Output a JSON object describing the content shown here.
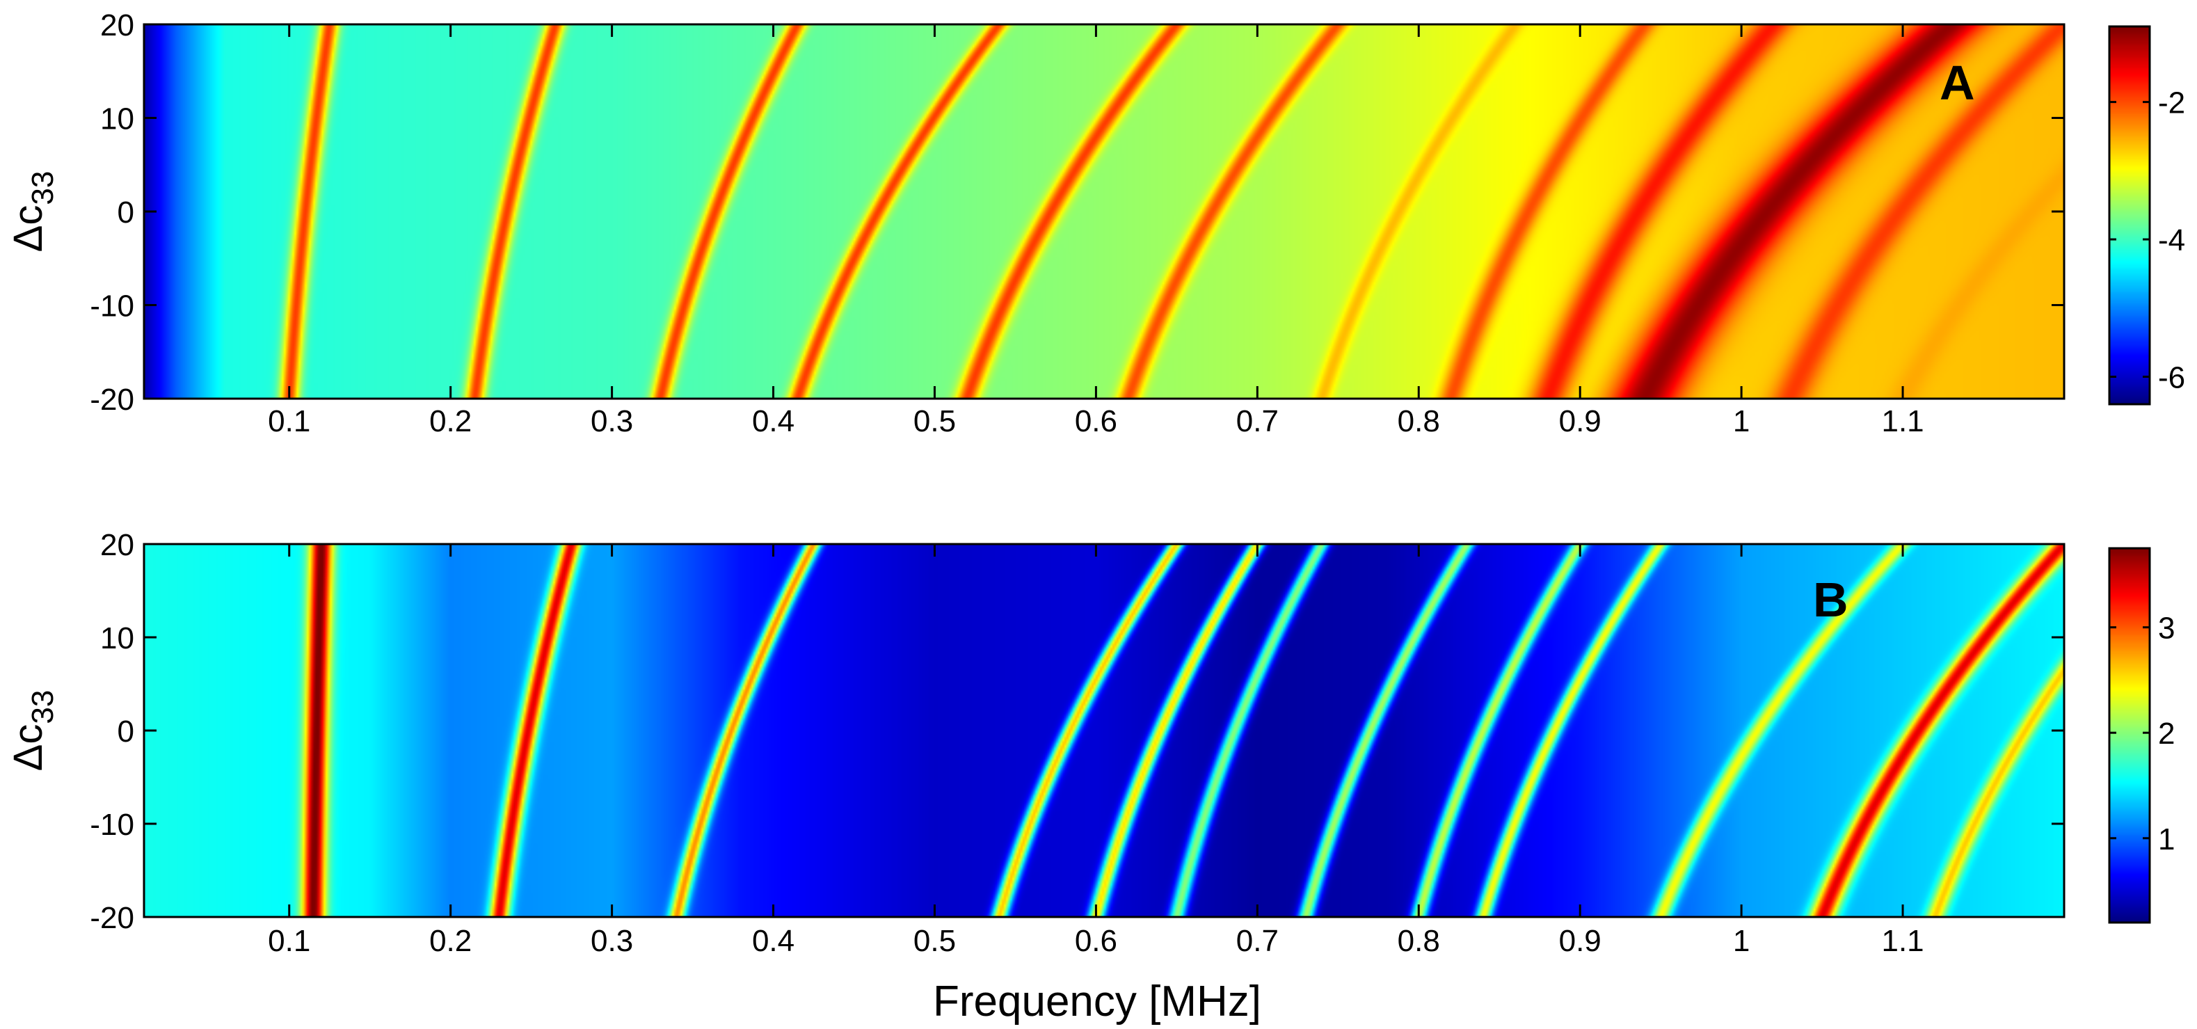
{
  "figure": {
    "xlabel": "Frequency [MHz]"
  },
  "colors": {
    "colormap": "jet",
    "frame": "#000000"
  },
  "chart_data": [
    {
      "type": "heatmap",
      "panel": "A",
      "ylabel_main": "Δc",
      "ylabel_sub": "33",
      "xlim": [
        0.01,
        1.2
      ],
      "ylim": [
        -20,
        20
      ],
      "xticks": [
        0.1,
        0.2,
        0.3,
        0.4,
        0.5,
        0.6,
        0.7,
        0.8,
        0.9,
        1.0,
        1.1
      ],
      "xtick_labels": [
        "0.1",
        "0.2",
        "0.3",
        "0.4",
        "0.5",
        "0.6",
        "0.7",
        "0.8",
        "0.9",
        "1",
        "1.1"
      ],
      "yticks": [
        20,
        10,
        0,
        -10,
        -20
      ],
      "ytick_labels": [
        "20",
        "10",
        "0",
        "-10",
        "-20"
      ],
      "clim": [
        -6.4,
        -0.9
      ],
      "cticks": [
        -2,
        -4,
        -6
      ],
      "ctick_labels": [
        "-2",
        "-4",
        "-6"
      ],
      "baseline": [
        {
          "x": 0.01,
          "v": -6.2
        },
        {
          "x": 0.03,
          "v": -5.2
        },
        {
          "x": 0.06,
          "v": -4.2
        },
        {
          "x": 0.15,
          "v": -4.1
        },
        {
          "x": 0.3,
          "v": -4.0
        },
        {
          "x": 0.5,
          "v": -3.7
        },
        {
          "x": 0.7,
          "v": -3.4
        },
        {
          "x": 0.85,
          "v": -3.0
        },
        {
          "x": 1.0,
          "v": -2.7
        },
        {
          "x": 1.2,
          "v": -2.6
        }
      ],
      "ridges": [
        {
          "f_bottom": 0.1,
          "f_top": 0.125,
          "peak": -1.9,
          "width": 0.006
        },
        {
          "f_bottom": 0.215,
          "f_top": 0.265,
          "peak": -1.9,
          "width": 0.006
        },
        {
          "f_bottom": 0.33,
          "f_top": 0.415,
          "peak": -1.9,
          "width": 0.006
        },
        {
          "f_bottom": 0.415,
          "f_top": 0.54,
          "peak": -1.9,
          "width": 0.006
        },
        {
          "f_bottom": 0.52,
          "f_top": 0.65,
          "peak": -1.9,
          "width": 0.007
        },
        {
          "f_bottom": 0.62,
          "f_top": 0.75,
          "peak": -2.0,
          "width": 0.007
        },
        {
          "f_bottom": 0.74,
          "f_top": 0.86,
          "peak": -2.6,
          "width": 0.006
        },
        {
          "f_bottom": 0.82,
          "f_top": 0.94,
          "peak": -2.0,
          "width": 0.008
        },
        {
          "f_bottom": 0.88,
          "f_top": 1.02,
          "peak": -1.7,
          "width": 0.012
        },
        {
          "f_bottom": 0.94,
          "f_top": 1.13,
          "peak": -1.0,
          "width": 0.022
        },
        {
          "f_bottom": 1.03,
          "f_top": 1.2,
          "peak": -1.9,
          "width": 0.012
        },
        {
          "f_bottom": 1.1,
          "f_top": 1.3,
          "peak": -2.5,
          "width": 0.01
        }
      ]
    },
    {
      "type": "heatmap",
      "panel": "B",
      "ylabel_main": "Δc",
      "ylabel_sub": "33",
      "xlim": [
        0.01,
        1.2
      ],
      "ylim": [
        -20,
        20
      ],
      "xticks": [
        0.1,
        0.2,
        0.3,
        0.4,
        0.5,
        0.6,
        0.7,
        0.8,
        0.9,
        1.0,
        1.1
      ],
      "xtick_labels": [
        "0.1",
        "0.2",
        "0.3",
        "0.4",
        "0.5",
        "0.6",
        "0.7",
        "0.8",
        "0.9",
        "1",
        "1.1"
      ],
      "yticks": [
        20,
        10,
        0,
        -10,
        -20
      ],
      "ytick_labels": [
        "20",
        "10",
        "0",
        "-10",
        "-20"
      ],
      "clim": [
        0.2,
        3.75
      ],
      "cticks": [
        3,
        2,
        1
      ],
      "ctick_labels": [
        "3",
        "2",
        "1"
      ],
      "baseline": [
        {
          "x": 0.01,
          "v": 1.6
        },
        {
          "x": 0.15,
          "v": 1.5
        },
        {
          "x": 0.2,
          "v": 1.1
        },
        {
          "x": 0.3,
          "v": 1.2
        },
        {
          "x": 0.38,
          "v": 0.7
        },
        {
          "x": 0.5,
          "v": 0.45
        },
        {
          "x": 0.6,
          "v": 0.5
        },
        {
          "x": 0.7,
          "v": 0.3
        },
        {
          "x": 0.78,
          "v": 0.35
        },
        {
          "x": 0.9,
          "v": 0.7
        },
        {
          "x": 1.0,
          "v": 1.2
        },
        {
          "x": 1.2,
          "v": 1.5
        }
      ],
      "ridges": [
        {
          "f_bottom": 0.115,
          "f_top": 0.12,
          "peak": 3.8,
          "width": 0.007
        },
        {
          "f_bottom": 0.23,
          "f_top": 0.275,
          "peak": 3.4,
          "width": 0.006
        },
        {
          "f_bottom": 0.34,
          "f_top": 0.425,
          "peak": 2.8,
          "width": 0.005
        },
        {
          "f_bottom": 0.54,
          "f_top": 0.65,
          "peak": 2.6,
          "width": 0.005
        },
        {
          "f_bottom": 0.6,
          "f_top": 0.7,
          "peak": 2.5,
          "width": 0.005
        },
        {
          "f_bottom": 0.65,
          "f_top": 0.74,
          "peak": 2.0,
          "width": 0.005
        },
        {
          "f_bottom": 0.73,
          "f_top": 0.83,
          "peak": 2.1,
          "width": 0.005
        },
        {
          "f_bottom": 0.8,
          "f_top": 0.9,
          "peak": 2.2,
          "width": 0.005
        },
        {
          "f_bottom": 0.84,
          "f_top": 0.95,
          "peak": 2.4,
          "width": 0.005
        },
        {
          "f_bottom": 0.95,
          "f_top": 1.1,
          "peak": 2.4,
          "width": 0.006
        },
        {
          "f_bottom": 1.05,
          "f_top": 1.2,
          "peak": 3.4,
          "width": 0.008
        },
        {
          "f_bottom": 1.12,
          "f_top": 1.26,
          "peak": 2.6,
          "width": 0.006
        }
      ]
    }
  ]
}
